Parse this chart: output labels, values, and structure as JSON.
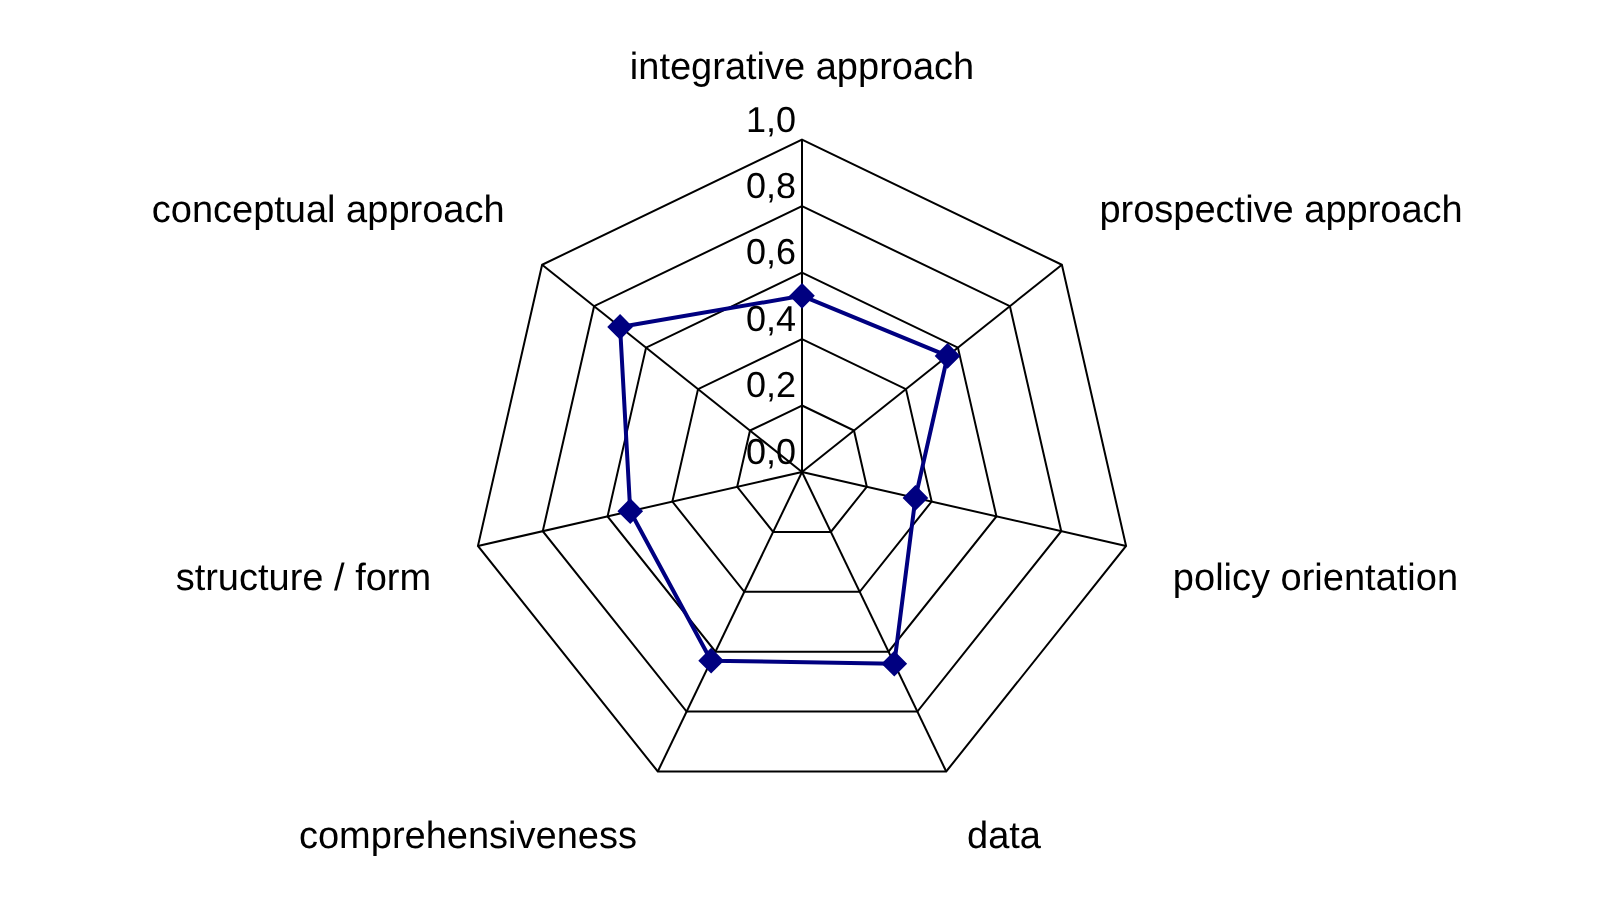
{
  "chart_data": {
    "type": "radar",
    "categories": [
      "integrative approach",
      "prospective approach",
      "policy orientation",
      "data",
      "comprehensiveness",
      "structure / form",
      "conceptual approach"
    ],
    "series": [
      {
        "color": "#000080",
        "values": [
          0.53,
          0.56,
          0.35,
          0.64,
          0.63,
          0.53,
          0.7
        ]
      }
    ],
    "ylim": [
      0,
      1
    ],
    "yticks": [
      {
        "value": 0,
        "label": "0,0"
      },
      {
        "value": 0.2,
        "label": "0,2"
      },
      {
        "value": 0.4,
        "label": "0,4"
      },
      {
        "value": 0.6,
        "label": "0,6"
      },
      {
        "value": 0.8,
        "label": "0,8"
      },
      {
        "value": 1,
        "label": "1,0"
      }
    ],
    "grid": true,
    "legend": false,
    "marker": "diamond",
    "line_style": "solid"
  }
}
